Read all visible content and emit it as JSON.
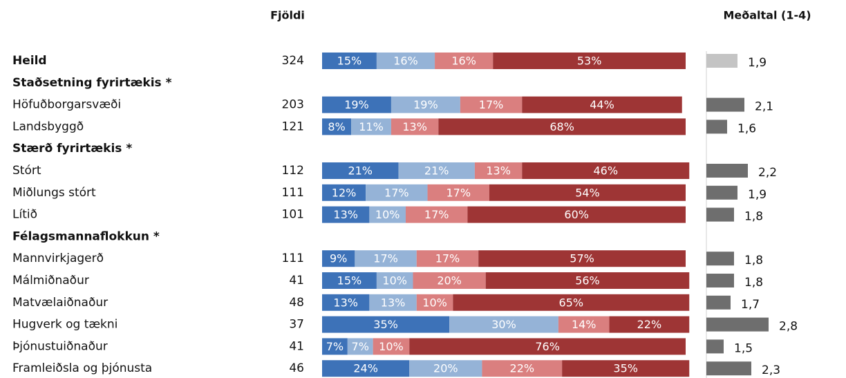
{
  "chart_data": {
    "type": "stacked_bar_table",
    "count_header": "Fjöldi",
    "mean_header": "Meðaltal (1-4)",
    "xlim": [
      0,
      100
    ],
    "mean_lim": [
      1,
      4
    ],
    "colors": [
      "#3d72b8",
      "#95b3d7",
      "#da7f7f",
      "#9e3535"
    ],
    "mean_color": "#6e6e6e",
    "rows": [
      {
        "label": "Heild",
        "bold": true,
        "count": 324,
        "values": [
          15,
          16,
          16,
          53
        ],
        "value_labels": [
          "15%",
          "16%",
          "16%",
          "53%"
        ],
        "mean": 1.9,
        "mean_label": "1,9",
        "mean_color": "#c4c4c4"
      },
      {
        "label": "Staðsetning fyrirtækis *",
        "bold": true
      },
      {
        "label": "Höfuðborgarsvæði",
        "count": 203,
        "values": [
          19,
          19,
          17,
          44
        ],
        "value_labels": [
          "19%",
          "19%",
          "17%",
          "44%"
        ],
        "mean": 2.1,
        "mean_label": "2,1"
      },
      {
        "label": "Landsbyggð",
        "count": 121,
        "values": [
          8,
          11,
          13,
          68
        ],
        "value_labels": [
          "8%",
          "11%",
          "13%",
          "68%"
        ],
        "mean": 1.6,
        "mean_label": "1,6"
      },
      {
        "label": "Stærð fyrirtækis *",
        "bold": true
      },
      {
        "label": "Stórt",
        "count": 112,
        "values": [
          21,
          21,
          13,
          46
        ],
        "value_labels": [
          "21%",
          "21%",
          "13%",
          "46%"
        ],
        "mean": 2.2,
        "mean_label": "2,2"
      },
      {
        "label": "Miðlungs stórt",
        "count": 111,
        "values": [
          12,
          17,
          17,
          54
        ],
        "value_labels": [
          "12%",
          "17%",
          "17%",
          "54%"
        ],
        "mean": 1.9,
        "mean_label": "1,9"
      },
      {
        "label": "Lítið",
        "count": 101,
        "values": [
          13,
          10,
          17,
          60
        ],
        "value_labels": [
          "13%",
          "10%",
          "17%",
          "60%"
        ],
        "mean": 1.8,
        "mean_label": "1,8"
      },
      {
        "label": "Félagsmannaflokkun *",
        "bold": true
      },
      {
        "label": "Mannvirkjagerð",
        "count": 111,
        "values": [
          9,
          17,
          17,
          57
        ],
        "value_labels": [
          "9%",
          "17%",
          "17%",
          "57%"
        ],
        "mean": 1.8,
        "mean_label": "1,8"
      },
      {
        "label": "Málmiðnaður",
        "count": 41,
        "values": [
          15,
          10,
          20,
          56
        ],
        "value_labels": [
          "15%",
          "10%",
          "20%",
          "56%"
        ],
        "mean": 1.8,
        "mean_label": "1,8"
      },
      {
        "label": "Matvælaiðnaður",
        "count": 48,
        "values": [
          13,
          13,
          10,
          65
        ],
        "value_labels": [
          "13%",
          "13%",
          "10%",
          "65%"
        ],
        "mean": 1.7,
        "mean_label": "1,7"
      },
      {
        "label": "Hugverk og tækni",
        "count": 37,
        "values": [
          35,
          30,
          14,
          22
        ],
        "value_labels": [
          "35%",
          "30%",
          "14%",
          "22%"
        ],
        "mean": 2.8,
        "mean_label": "2,8"
      },
      {
        "label": "Þjónustuiðnaður",
        "count": 41,
        "values": [
          7,
          7,
          10,
          76
        ],
        "value_labels": [
          "7%",
          "7%",
          "10%",
          "76%"
        ],
        "mean": 1.5,
        "mean_label": "1,5"
      },
      {
        "label": "Framleiðsla og þjónusta",
        "count": 46,
        "values": [
          24,
          20,
          22,
          35
        ],
        "value_labels": [
          "24%",
          "20%",
          "22%",
          "35%"
        ],
        "mean": 2.3,
        "mean_label": "2,3"
      }
    ]
  }
}
